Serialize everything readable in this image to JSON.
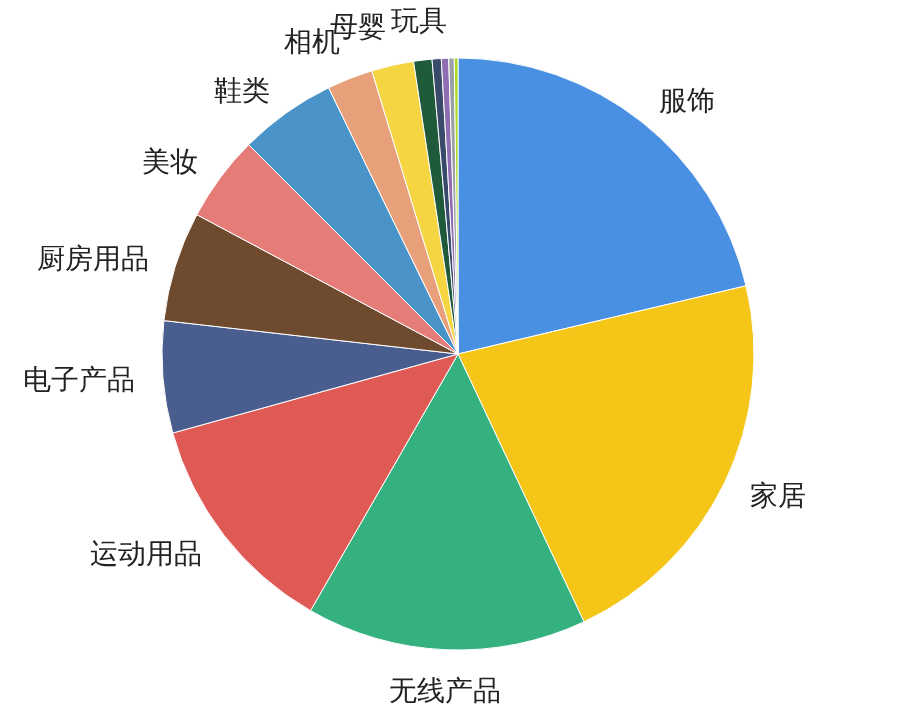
{
  "chart_data": {
    "type": "pie",
    "categories": [
      "服饰",
      "家居",
      "无线产品",
      "运动用品",
      "电子产品",
      "厨房用品",
      "美妆",
      "鞋类",
      "相机",
      "母婴",
      "玩具",
      null,
      null,
      null,
      null
    ],
    "values": [
      21.3,
      21.7,
      15.3,
      12.4,
      6.1,
      6.0,
      4.7,
      5.3,
      2.5,
      2.3,
      1.0,
      0.5,
      0.4,
      0.3,
      0.2
    ],
    "colors": [
      "#4a90e2",
      "#f5c518",
      "#35b07f",
      "#e05a55",
      "#4a5d8f",
      "#6e4a2f",
      "#e57c78",
      "#4a93c9",
      "#e8a07a",
      "#f5d542",
      "#1f5a3a",
      "#3a4a6b",
      "#8e6db0",
      "#9aa0a6",
      "#a8d824"
    ]
  }
}
